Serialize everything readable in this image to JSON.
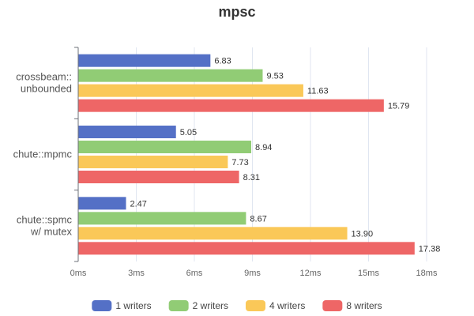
{
  "chart_data": {
    "type": "bar",
    "orientation": "horizontal",
    "title": "mpsc",
    "categories": [
      [
        "crossbeam::",
        "unbounded"
      ],
      [
        "chute::mpmc"
      ],
      [
        "chute::spmc",
        "w/ mutex"
      ]
    ],
    "x_ticks": [
      "0ms",
      "3ms",
      "6ms",
      "9ms",
      "12ms",
      "15ms",
      "18ms"
    ],
    "xlim": [
      0,
      18
    ],
    "grid": "vertical",
    "legend_position": "bottom",
    "series": [
      {
        "name": "1 writers",
        "color": "#5470c6",
        "values": [
          6.83,
          5.05,
          2.47
        ],
        "labels": [
          "6.83",
          "5.05",
          "2.47"
        ]
      },
      {
        "name": "2 writers",
        "color": "#91cc75",
        "values": [
          9.53,
          8.94,
          8.67
        ],
        "labels": [
          "9.53",
          "8.94",
          "8.67"
        ]
      },
      {
        "name": "4 writers",
        "color": "#fac858",
        "values": [
          11.63,
          7.73,
          13.9
        ],
        "labels": [
          "11.63",
          "7.73",
          "13.90"
        ]
      },
      {
        "name": "8 writers",
        "color": "#ee6666",
        "values": [
          15.79,
          8.31,
          17.38
        ],
        "labels": [
          "15.79",
          "8.31",
          "17.38"
        ]
      }
    ]
  }
}
